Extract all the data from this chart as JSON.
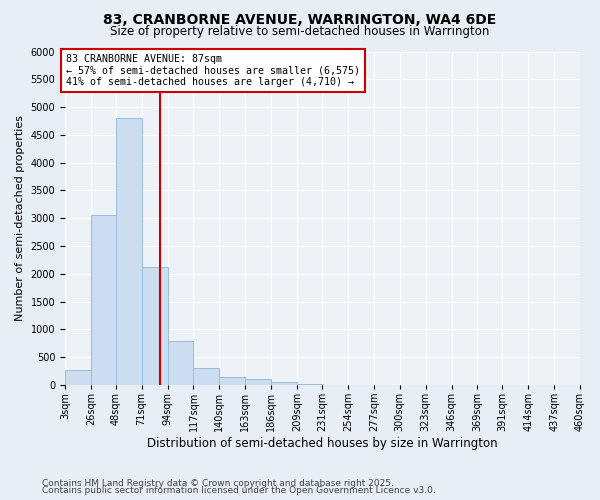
{
  "title": "83, CRANBORNE AVENUE, WARRINGTON, WA4 6DE",
  "subtitle": "Size of property relative to semi-detached houses in Warrington",
  "xlabel": "Distribution of semi-detached houses by size in Warrington",
  "ylabel": "Number of semi-detached properties",
  "footnote1": "Contains HM Land Registry data © Crown copyright and database right 2025.",
  "footnote2": "Contains public sector information licensed under the Open Government Licence v3.0.",
  "property_label": "83 CRANBORNE AVENUE: 87sqm",
  "smaller_pct": 57,
  "smaller_count": 6575,
  "larger_pct": 41,
  "larger_count": 4710,
  "bin_labels": [
    "3sqm",
    "26sqm",
    "48sqm",
    "71sqm",
    "94sqm",
    "117sqm",
    "140sqm",
    "163sqm",
    "186sqm",
    "209sqm",
    "231sqm",
    "254sqm",
    "277sqm",
    "300sqm",
    "323sqm",
    "346sqm",
    "369sqm",
    "391sqm",
    "414sqm",
    "437sqm",
    "460sqm"
  ],
  "bin_edges": [
    3,
    26,
    48,
    71,
    94,
    117,
    140,
    163,
    186,
    209,
    231,
    254,
    277,
    300,
    323,
    346,
    369,
    391,
    414,
    437,
    460
  ],
  "bar_heights": [
    270,
    3050,
    4800,
    2130,
    800,
    310,
    150,
    100,
    50,
    20,
    5,
    0,
    0,
    0,
    0,
    0,
    0,
    0,
    0,
    0
  ],
  "bar_color": "#ccddef",
  "bar_edge_color": "#99bbdd",
  "vline_color": "#cc0000",
  "vline_x": 87,
  "annotation_box_color": "#cc0000",
  "ylim": [
    0,
    6000
  ],
  "yticks": [
    0,
    500,
    1000,
    1500,
    2000,
    2500,
    3000,
    3500,
    4000,
    4500,
    5000,
    5500,
    6000
  ],
  "bg_color": "#e8eef5",
  "plot_bg_color": "#edf2f7",
  "title_fontsize": 10,
  "subtitle_fontsize": 8.5,
  "ylabel_fontsize": 8,
  "xlabel_fontsize": 8.5,
  "tick_fontsize": 7,
  "footnote_fontsize": 6.5
}
